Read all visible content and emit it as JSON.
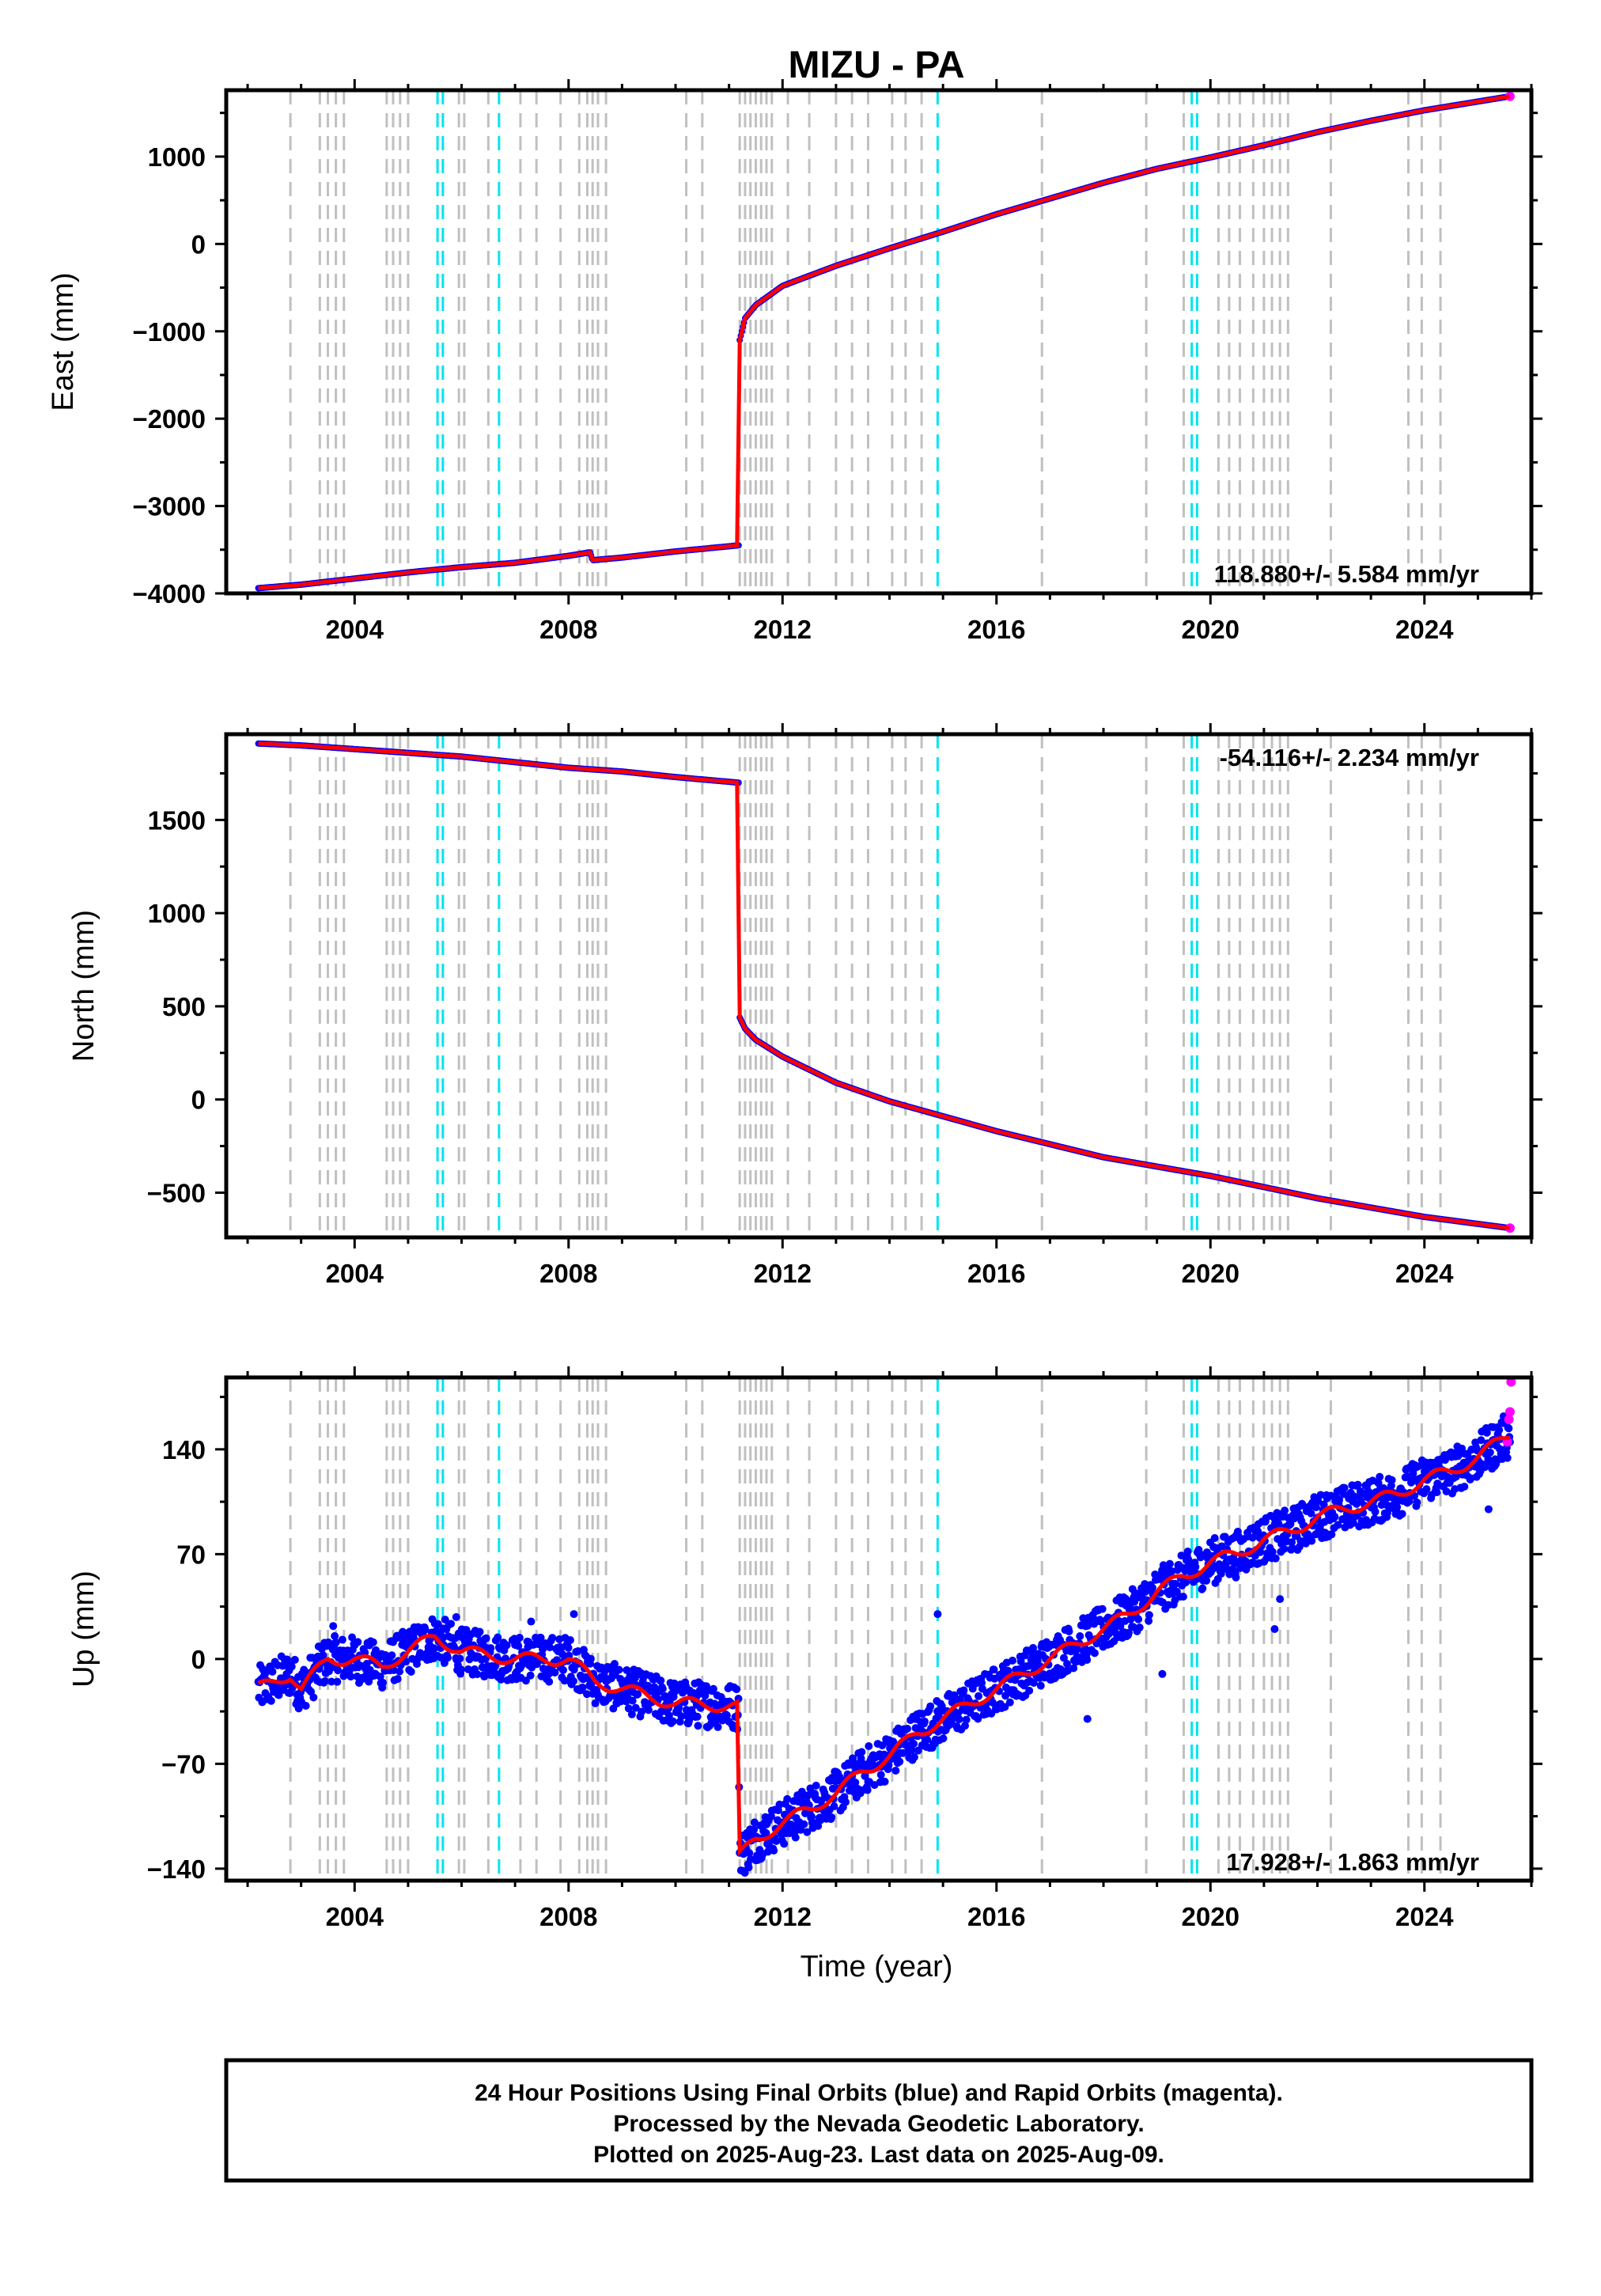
{
  "chart_data": [
    {
      "type": "scatter",
      "title": "MIZU - PA",
      "xlabel": "",
      "ylabel": "East (mm)",
      "xlim": [
        2001.6,
        2026.0
      ],
      "ylim": [
        -4000,
        1760
      ],
      "xticks": [
        2004,
        2008,
        2012,
        2016,
        2020,
        2024
      ],
      "yticks": [
        1000,
        0,
        -1000,
        -2000,
        -3000,
        -4000
      ],
      "rate_label": "118.880+/- 5.584 mm/yr",
      "grid": false,
      "series": [
        {
          "color": "#0000ff",
          "x": [
            2002.2,
            2003.0,
            2004.0,
            2005.0,
            2006.0,
            2007.0,
            2008.0,
            2008.4,
            2008.45,
            2009.0,
            2010.0,
            2011.18,
            2011.2,
            2011.3,
            2011.5,
            2012.0,
            2013.0,
            2014.0,
            2015.0,
            2016.0,
            2017.0,
            2018.0,
            2019.0,
            2020.0,
            2021.0,
            2022.0,
            2023.0,
            2024.0,
            2025.6
          ],
          "y": [
            -3940,
            -3900,
            -3830,
            -3760,
            -3700,
            -3650,
            -3570,
            -3530,
            -3620,
            -3590,
            -3520,
            -3450,
            -1100,
            -850,
            -700,
            -480,
            -250,
            -50,
            140,
            340,
            520,
            700,
            860,
            990,
            1130,
            1280,
            1410,
            1530,
            1690
          ]
        }
      ],
      "trend_color": "#ff0000"
    },
    {
      "type": "scatter",
      "title": "",
      "xlabel": "",
      "ylabel": "North (mm)",
      "xlim": [
        2001.6,
        2026.0
      ],
      "ylim": [
        -740,
        1960
      ],
      "xticks": [
        2004,
        2008,
        2012,
        2016,
        2020,
        2024
      ],
      "yticks": [
        1500,
        1000,
        500,
        0,
        -500
      ],
      "rate_label": "-54.116+/- 2.234 mm/yr",
      "grid": false,
      "series": [
        {
          "color": "#0000ff",
          "x": [
            2002.2,
            2003.0,
            2004.0,
            2005.0,
            2006.0,
            2007.0,
            2008.0,
            2009.0,
            2010.0,
            2011.18,
            2011.2,
            2011.3,
            2011.5,
            2012.0,
            2013.0,
            2014.0,
            2015.0,
            2016.0,
            2017.0,
            2018.0,
            2019.0,
            2020.0,
            2021.0,
            2022.0,
            2023.0,
            2024.0,
            2025.6
          ],
          "y": [
            1910,
            1900,
            1880,
            1860,
            1840,
            1810,
            1780,
            1760,
            1730,
            1700,
            440,
            380,
            320,
            230,
            90,
            -10,
            -90,
            -170,
            -240,
            -310,
            -360,
            -410,
            -470,
            -530,
            -580,
            -630,
            -690
          ]
        }
      ],
      "trend_color": "#ff0000"
    },
    {
      "type": "scatter",
      "title": "",
      "xlabel": "Time (year)",
      "ylabel": "Up (mm)",
      "xlim": [
        2001.6,
        2026.0
      ],
      "ylim": [
        -148,
        188
      ],
      "xticks": [
        2004,
        2008,
        2012,
        2016,
        2020,
        2024
      ],
      "yticks": [
        140,
        70,
        0,
        -70,
        -140
      ],
      "rate_label": "17.928+/- 1.863 mm/yr",
      "grid": false,
      "series": [
        {
          "color": "#0000ff",
          "x": [
            2002.2,
            2002.8,
            2003.0,
            2003.5,
            2004.0,
            2004.5,
            2005.0,
            2005.5,
            2006.0,
            2007.0,
            2008.0,
            2008.5,
            2009.0,
            2009.5,
            2010.0,
            2010.5,
            2011.18,
            2011.2,
            2011.5,
            2012.0,
            2012.5,
            2013.0,
            2013.5,
            2014.0,
            2014.5,
            2015.0,
            2015.5,
            2016.0,
            2016.5,
            2017.0,
            2017.5,
            2018.0,
            2018.5,
            2019.0,
            2019.5,
            2020.0,
            2020.5,
            2021.0,
            2021.5,
            2022.0,
            2022.5,
            2023.0,
            2023.5,
            2024.0,
            2024.5,
            2025.0,
            2025.6
          ],
          "y": [
            -20,
            -10,
            -20,
            0,
            0,
            -5,
            5,
            15,
            5,
            0,
            0,
            -15,
            -20,
            -25,
            -30,
            -30,
            -32,
            -132,
            -120,
            -110,
            -100,
            -90,
            -75,
            -65,
            -50,
            -40,
            -30,
            -20,
            -10,
            0,
            10,
            20,
            30,
            45,
            55,
            65,
            70,
            80,
            85,
            95,
            100,
            105,
            110,
            120,
            125,
            135,
            150
          ]
        },
        {
          "color": "#ff00ff",
          "x": [
            2025.55,
            2025.58,
            2025.6,
            2025.62
          ],
          "y": [
            145,
            160,
            165,
            185
          ]
        }
      ],
      "trend_color": "#ff0000"
    }
  ],
  "events": {
    "gray": [
      2002.8,
      2003.35,
      2003.5,
      2003.65,
      2003.8,
      2004.6,
      2004.72,
      2004.85,
      2005.0,
      2005.95,
      2006.05,
      2006.5,
      2007.1,
      2007.4,
      2007.85,
      2008.2,
      2008.35,
      2008.45,
      2008.55,
      2008.7,
      2010.2,
      2010.5,
      2011.2,
      2011.3,
      2011.4,
      2011.5,
      2011.6,
      2011.7,
      2011.8,
      2012.1,
      2012.5,
      2013.0,
      2013.3,
      2013.6,
      2014.05,
      2014.3,
      2014.6,
      2016.85,
      2018.8,
      2019.5,
      2020.15,
      2020.35,
      2020.55,
      2020.8,
      2021.0,
      2021.15,
      2021.3,
      2021.45,
      2022.25,
      2023.7,
      2023.95,
      2024.3
    ],
    "cyan": [
      2005.55,
      2005.65,
      2006.7,
      2014.9,
      2019.65,
      2019.75
    ]
  },
  "footer": {
    "line1": "24 Hour Positions Using Final Orbits (blue) and Rapid Orbits (magenta).",
    "line2": "Processed by the Nevada Geodetic Laboratory.",
    "line3": "Plotted on 2025-Aug-23. Last data on 2025-Aug-09."
  },
  "colors": {
    "final_orbits": "#0000ff",
    "rapid_orbits": "#ff00ff",
    "trend": "#ff0000",
    "event_gray": "#c0c0c0",
    "event_cyan": "#00e5ee"
  }
}
